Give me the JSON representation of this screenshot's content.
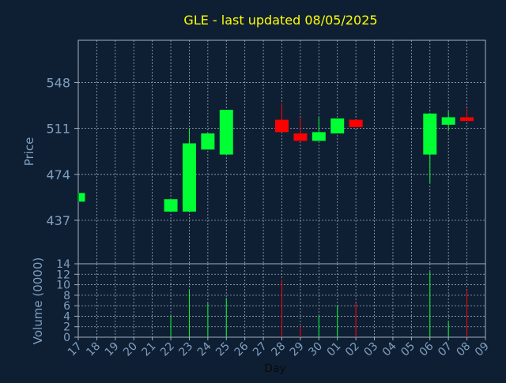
{
  "chart_data": {
    "type": "candlestick",
    "title": "GLE - last updated 08/05/2025",
    "xlabel": "Day",
    "x_ticks": [
      "17",
      "18",
      "19",
      "20",
      "21",
      "22",
      "23",
      "24",
      "25",
      "26",
      "27",
      "28",
      "29",
      "30",
      "01",
      "02",
      "03",
      "04",
      "05",
      "06",
      "07",
      "08",
      "09"
    ],
    "price_panel": {
      "ylabel": "Price",
      "yticks": [
        437,
        474,
        511,
        548
      ],
      "ylim": [
        402,
        582
      ],
      "candles": [
        {
          "day": "17",
          "open": 452,
          "close": 459,
          "high": 459,
          "low": 452,
          "direction": "up"
        },
        {
          "day": "22",
          "open": 444,
          "close": 454,
          "high": 454,
          "low": 444,
          "direction": "up"
        },
        {
          "day": "23",
          "open": 444,
          "close": 499,
          "high": 511,
          "low": 444,
          "direction": "up"
        },
        {
          "day": "24",
          "open": 494,
          "close": 507,
          "high": 507,
          "low": 494,
          "direction": "up"
        },
        {
          "day": "25",
          "open": 490,
          "close": 526,
          "high": 526,
          "low": 490,
          "direction": "up"
        },
        {
          "day": "28",
          "open": 518,
          "close": 508,
          "high": 531,
          "low": 508,
          "direction": "down"
        },
        {
          "day": "29",
          "open": 507,
          "close": 501,
          "high": 520,
          "low": 501,
          "direction": "down"
        },
        {
          "day": "30",
          "open": 501,
          "close": 508,
          "high": 520,
          "low": 501,
          "direction": "up"
        },
        {
          "day": "01",
          "open": 507,
          "close": 519,
          "high": 519,
          "low": 507,
          "direction": "up"
        },
        {
          "day": "02",
          "open": 518,
          "close": 512,
          "high": 518,
          "low": 512,
          "direction": "down"
        },
        {
          "day": "06",
          "open": 490,
          "close": 523,
          "high": 523,
          "low": 467,
          "direction": "up"
        },
        {
          "day": "07",
          "open": 514,
          "close": 520,
          "high": 525,
          "low": 509,
          "direction": "up"
        },
        {
          "day": "08",
          "open": 520,
          "close": 517,
          "high": 527,
          "low": 517,
          "direction": "down"
        }
      ]
    },
    "volume_panel": {
      "ylabel": "Volume (0000)",
      "yticks": [
        0,
        2,
        4,
        6,
        8,
        10,
        12,
        14
      ],
      "ylim": [
        0,
        14
      ],
      "bars": [
        {
          "day": "22",
          "value": 4,
          "direction": "up"
        },
        {
          "day": "23",
          "value": 9,
          "direction": "up"
        },
        {
          "day": "24",
          "value": 6.5,
          "direction": "up"
        },
        {
          "day": "25",
          "value": 7.5,
          "direction": "up"
        },
        {
          "day": "28",
          "value": 11,
          "direction": "down"
        },
        {
          "day": "29",
          "value": 2,
          "direction": "down"
        },
        {
          "day": "30",
          "value": 4,
          "direction": "up"
        },
        {
          "day": "01",
          "value": 6,
          "direction": "up"
        },
        {
          "day": "02",
          "value": 6.5,
          "direction": "down"
        },
        {
          "day": "06",
          "value": 12.5,
          "direction": "up"
        },
        {
          "day": "07",
          "value": 3,
          "direction": "up"
        },
        {
          "day": "08",
          "value": 9,
          "direction": "down"
        }
      ]
    },
    "colors": {
      "background": "#0f1f33",
      "up": "#00ff33",
      "down": "#ff0000",
      "title": "#ffff00",
      "axis_text": "#7f9fbf",
      "frame": "#a0b0c0",
      "grid": "#9aa8b8"
    },
    "grid": true
  }
}
